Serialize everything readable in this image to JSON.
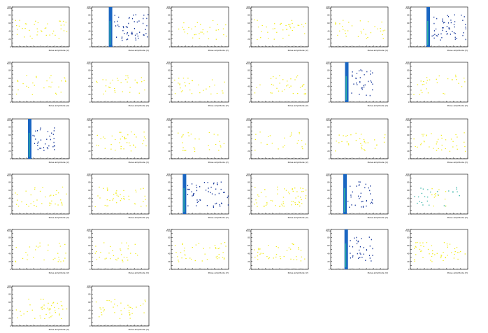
{
  "chart_data": {
    "type": "heatmap",
    "grid": {
      "rows": 6,
      "cols": 6,
      "panels_shown": 32
    },
    "shared": {
      "xlabel": "Pulse amplitude (V)",
      "ylabel": "Time",
      "ylim": [
        0,
        100
      ],
      "yticks": [
        "0",
        "10",
        "20",
        "30",
        "40",
        "50",
        "60",
        "70",
        "80",
        "90",
        "100"
      ],
      "grid": false
    },
    "palette": {
      "low": "#f2ec1d",
      "mid": "#2bb0a2",
      "high": "#1a66c2",
      "axis": "#000000"
    },
    "panels": [
      {
        "id": 1,
        "kind": "scatter",
        "density": 40
      },
      {
        "id": 2,
        "kind": "band",
        "band_x": 0.3,
        "tail": "long"
      },
      {
        "id": 3,
        "kind": "scatter",
        "density": 32
      },
      {
        "id": 4,
        "kind": "scatter",
        "density": 38
      },
      {
        "id": 5,
        "kind": "scatter",
        "density": 34
      },
      {
        "id": 6,
        "kind": "band",
        "band_x": 0.28,
        "tail": "long"
      },
      {
        "id": 7,
        "kind": "scatter",
        "density": 30
      },
      {
        "id": 8,
        "kind": "scatter",
        "density": 34
      },
      {
        "id": 9,
        "kind": "scatter",
        "density": 30
      },
      {
        "id": 10,
        "kind": "scatter",
        "density": 36
      },
      {
        "id": 11,
        "kind": "band",
        "band_x": 0.25,
        "tail": "medium"
      },
      {
        "id": 12,
        "kind": "scatter",
        "density": 30
      },
      {
        "id": 13,
        "kind": "band",
        "band_x": 0.28,
        "tail": "medium"
      },
      {
        "id": 14,
        "kind": "scatter",
        "density": 42
      },
      {
        "id": 15,
        "kind": "scatter",
        "density": 28
      },
      {
        "id": 16,
        "kind": "scatter",
        "density": 24
      },
      {
        "id": 17,
        "kind": "scatter",
        "density": 34
      },
      {
        "id": 18,
        "kind": "scatter",
        "density": 38
      },
      {
        "id": 19,
        "kind": "scatter",
        "density": 40
      },
      {
        "id": 20,
        "kind": "scatter",
        "density": 42
      },
      {
        "id": 21,
        "kind": "band",
        "band_x": 0.2,
        "tail": "long"
      },
      {
        "id": 22,
        "kind": "scatter",
        "density": 60
      },
      {
        "id": 23,
        "kind": "band",
        "band_x": 0.22,
        "tail": "medium"
      },
      {
        "id": 24,
        "kind": "scatter",
        "density": 26,
        "tint": "mid"
      },
      {
        "id": 25,
        "kind": "scatter",
        "density": 30
      },
      {
        "id": 26,
        "kind": "scatter",
        "density": 34
      },
      {
        "id": 27,
        "kind": "scatter",
        "density": 42
      },
      {
        "id": 28,
        "kind": "scatter",
        "density": 40
      },
      {
        "id": 29,
        "kind": "band",
        "band_x": 0.24,
        "tail": "medium"
      },
      {
        "id": 30,
        "kind": "scatter",
        "density": 52
      },
      {
        "id": 31,
        "kind": "scatter",
        "density": 46
      },
      {
        "id": 32,
        "kind": "scatter",
        "density": 38
      }
    ]
  }
}
